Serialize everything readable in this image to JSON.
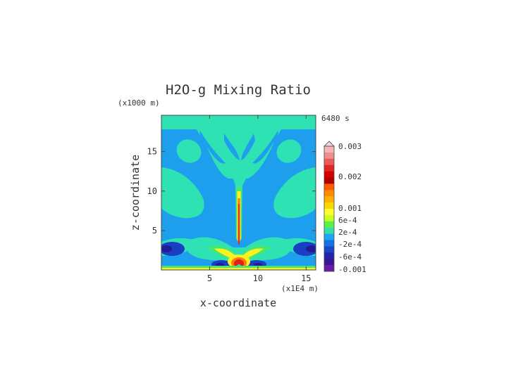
{
  "chart_data": {
    "type": "heatmap",
    "title": "H2O-g Mixing Ratio",
    "time_label": "6480 s",
    "xlabel": "x-coordinate",
    "ylabel": "z-coordinate",
    "x_unit_label": "(x1E4 m)",
    "y_unit_label": "(x1000 m)",
    "xlim": [
      0.0,
      16.0
    ],
    "ylim": [
      0.0,
      19.6
    ],
    "x_ticks": [
      {
        "value": 5,
        "label": "5"
      },
      {
        "value": 10,
        "label": "10"
      },
      {
        "value": 15,
        "label": "15"
      }
    ],
    "y_ticks": [
      {
        "value": 5,
        "label": "5"
      },
      {
        "value": 10,
        "label": "10"
      },
      {
        "value": 15,
        "label": "15"
      }
    ],
    "colorbar": {
      "labels": [
        "0.003",
        "0.002",
        "0.001",
        "6e-4",
        "2e-4",
        "-2e-4",
        "-6e-4",
        "-0.001"
      ],
      "colors": [
        "#f4b6b6",
        "#ef8e8e",
        "#ea5a5a",
        "#e22525",
        "#d40000",
        "#b00000",
        "#ff5a00",
        "#ff8c00",
        "#ffb000",
        "#ffd700",
        "#ffff30",
        "#c8ff20",
        "#5ef04a",
        "#34e0a8",
        "#1ea6f0",
        "#1472e6",
        "#1a46c8",
        "#2424a8",
        "#3a1696",
        "#6a1aa6"
      ]
    },
    "background_color": "#1e9fee",
    "regions": [
      {
        "level": "background",
        "color": "#1e9fee"
      },
      {
        "level": "teal",
        "color": "#2ee2b4"
      },
      {
        "level": "dark-blue",
        "color": "#1a3fc4"
      },
      {
        "level": "navy",
        "color": "#221a96"
      },
      {
        "level": "green",
        "color": "#48e86e"
      },
      {
        "level": "yellow",
        "color": "#fff020"
      },
      {
        "level": "orange",
        "color": "#ff7a00"
      },
      {
        "level": "red",
        "color": "#e02020"
      }
    ]
  }
}
